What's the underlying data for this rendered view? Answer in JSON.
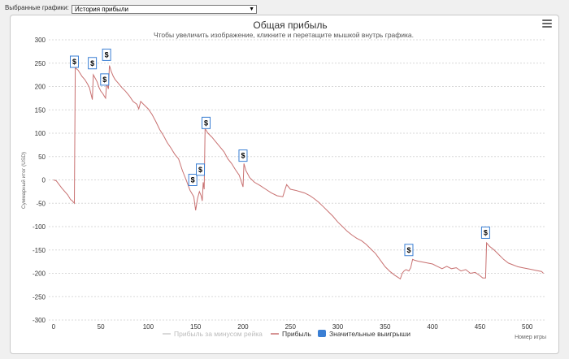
{
  "selector": {
    "label": "Выбранные графики:",
    "value": "История прибыли",
    "arrow_icon": "dropdown-arrow-icon"
  },
  "menu": {
    "icon": "hamburger-menu-icon"
  },
  "chart_data": {
    "type": "line",
    "title": "Общая прибыль",
    "subtitle": "Чтобы увеличить изображение, кликните и перетащите мышкой внутрь графика.",
    "xlabel": "Номер игры",
    "ylabel": "Суммарный итог (USD)",
    "xlim": [
      -5,
      520
    ],
    "ylim": [
      -300,
      300
    ],
    "x_ticks": [
      0,
      50,
      100,
      150,
      200,
      250,
      300,
      350,
      400,
      450,
      500
    ],
    "y_ticks": [
      -300,
      -250,
      -200,
      -150,
      -100,
      -50,
      0,
      50,
      100,
      150,
      200,
      250,
      300
    ],
    "grid": true,
    "legend_position": "bottom-center",
    "series": [
      {
        "name": "Прибыль за минусом рейка",
        "color": "#cccccc",
        "visible": false,
        "points": []
      },
      {
        "name": "Прибыль",
        "color": "#c87070",
        "points": [
          [
            0,
            0
          ],
          [
            3,
            -2
          ],
          [
            6,
            -10
          ],
          [
            9,
            -18
          ],
          [
            12,
            -25
          ],
          [
            15,
            -32
          ],
          [
            18,
            -42
          ],
          [
            20,
            -45
          ],
          [
            22,
            -50
          ],
          [
            23,
            240
          ],
          [
            26,
            235
          ],
          [
            30,
            222
          ],
          [
            33,
            215
          ],
          [
            36,
            205
          ],
          [
            38,
            197
          ],
          [
            40,
            180
          ],
          [
            41,
            172
          ],
          [
            42,
            225
          ],
          [
            44,
            218
          ],
          [
            46,
            210
          ],
          [
            48,
            198
          ],
          [
            50,
            190
          ],
          [
            52,
            185
          ],
          [
            54,
            178
          ],
          [
            55,
            175
          ],
          [
            56,
            205
          ],
          [
            57,
            200
          ],
          [
            58,
            195
          ],
          [
            59,
            245
          ],
          [
            61,
            232
          ],
          [
            63,
            222
          ],
          [
            65,
            215
          ],
          [
            68,
            208
          ],
          [
            72,
            198
          ],
          [
            76,
            190
          ],
          [
            80,
            180
          ],
          [
            84,
            168
          ],
          [
            88,
            162
          ],
          [
            90,
            152
          ],
          [
            92,
            168
          ],
          [
            96,
            160
          ],
          [
            100,
            152
          ],
          [
            104,
            140
          ],
          [
            108,
            125
          ],
          [
            112,
            108
          ],
          [
            116,
            95
          ],
          [
            120,
            80
          ],
          [
            124,
            68
          ],
          [
            128,
            55
          ],
          [
            132,
            45
          ],
          [
            136,
            20
          ],
          [
            140,
            0
          ],
          [
            144,
            -22
          ],
          [
            148,
            -36
          ],
          [
            150,
            -65
          ],
          [
            152,
            -40
          ],
          [
            154,
            -25
          ],
          [
            156,
            -35
          ],
          [
            157,
            -45
          ],
          [
            158,
            -5
          ],
          [
            159,
            -20
          ],
          [
            160,
            110
          ],
          [
            163,
            100
          ],
          [
            167,
            92
          ],
          [
            171,
            82
          ],
          [
            176,
            70
          ],
          [
            180,
            60
          ],
          [
            184,
            45
          ],
          [
            188,
            35
          ],
          [
            192,
            22
          ],
          [
            196,
            10
          ],
          [
            200,
            -15
          ],
          [
            201,
            35
          ],
          [
            203,
            20
          ],
          [
            207,
            5
          ],
          [
            212,
            -5
          ],
          [
            218,
            -12
          ],
          [
            224,
            -20
          ],
          [
            230,
            -28
          ],
          [
            236,
            -34
          ],
          [
            242,
            -36
          ],
          [
            246,
            -10
          ],
          [
            250,
            -20
          ],
          [
            255,
            -22
          ],
          [
            260,
            -25
          ],
          [
            265,
            -28
          ],
          [
            270,
            -33
          ],
          [
            275,
            -40
          ],
          [
            280,
            -48
          ],
          [
            285,
            -58
          ],
          [
            290,
            -68
          ],
          [
            295,
            -78
          ],
          [
            300,
            -90
          ],
          [
            305,
            -100
          ],
          [
            310,
            -110
          ],
          [
            315,
            -118
          ],
          [
            320,
            -125
          ],
          [
            325,
            -130
          ],
          [
            330,
            -138
          ],
          [
            335,
            -148
          ],
          [
            340,
            -158
          ],
          [
            345,
            -172
          ],
          [
            350,
            -186
          ],
          [
            355,
            -196
          ],
          [
            360,
            -204
          ],
          [
            363,
            -208
          ],
          [
            366,
            -212
          ],
          [
            368,
            -200
          ],
          [
            370,
            -195
          ],
          [
            372,
            -192
          ],
          [
            375,
            -195
          ],
          [
            377,
            -188
          ],
          [
            379,
            -170
          ],
          [
            381,
            -172
          ],
          [
            385,
            -174
          ],
          [
            390,
            -176
          ],
          [
            395,
            -178
          ],
          [
            400,
            -180
          ],
          [
            405,
            -185
          ],
          [
            410,
            -190
          ],
          [
            415,
            -185
          ],
          [
            420,
            -190
          ],
          [
            425,
            -188
          ],
          [
            430,
            -195
          ],
          [
            435,
            -192
          ],
          [
            440,
            -200
          ],
          [
            445,
            -198
          ],
          [
            450,
            -205
          ],
          [
            453,
            -210
          ],
          [
            456,
            -210
          ],
          [
            457,
            -135
          ],
          [
            460,
            -142
          ],
          [
            465,
            -150
          ],
          [
            470,
            -160
          ],
          [
            475,
            -170
          ],
          [
            480,
            -178
          ],
          [
            485,
            -182
          ],
          [
            490,
            -186
          ],
          [
            495,
            -188
          ],
          [
            500,
            -190
          ],
          [
            505,
            -192
          ],
          [
            510,
            -194
          ],
          [
            515,
            -196
          ],
          [
            517,
            -200
          ]
        ]
      },
      {
        "name": "Значительные выигрыши",
        "color": "#3a7fd4",
        "markers": [
          {
            "x": 22,
            "y": 253,
            "label": "$"
          },
          {
            "x": 41,
            "y": 250,
            "label": "$"
          },
          {
            "x": 54,
            "y": 215,
            "label": "$"
          },
          {
            "x": 56,
            "y": 268,
            "label": "$"
          },
          {
            "x": 147,
            "y": 0,
            "label": "$"
          },
          {
            "x": 155,
            "y": 22,
            "label": "$"
          },
          {
            "x": 161,
            "y": 122,
            "label": "$"
          },
          {
            "x": 200,
            "y": 52,
            "label": "$"
          },
          {
            "x": 375,
            "y": -150,
            "label": "$"
          },
          {
            "x": 456,
            "y": -113,
            "label": "$"
          }
        ]
      }
    ]
  }
}
